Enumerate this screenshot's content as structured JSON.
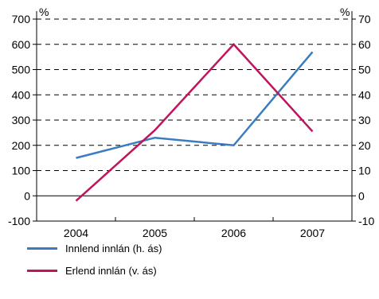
{
  "chart_data": {
    "type": "line",
    "categories": [
      "2004",
      "2005",
      "2006",
      "2007"
    ],
    "left_axis": {
      "unit": "%",
      "ylim": [
        -100,
        700
      ],
      "ticks": [
        -100,
        0,
        100,
        200,
        300,
        400,
        500,
        600,
        700
      ]
    },
    "right_axis": {
      "unit": "%",
      "ylim": [
        -10,
        70
      ],
      "ticks": [
        -10,
        0,
        10,
        20,
        30,
        40,
        50,
        60,
        70
      ]
    },
    "grid": "horizontal dashed",
    "legend_position": "bottom-left",
    "series": [
      {
        "name": "Innlend innlán (h. ás)",
        "axis": "right",
        "color": "#3a7cc1",
        "values": [
          15,
          23,
          20,
          57
        ]
      },
      {
        "name": "Erlend innlán (v. ás)",
        "axis": "left",
        "color": "#c0145c",
        "values": [
          -20,
          260,
          600,
          255
        ]
      }
    ]
  }
}
